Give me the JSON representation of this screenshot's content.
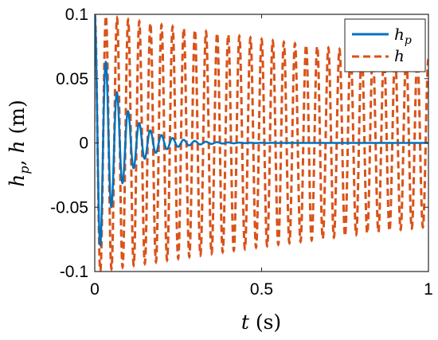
{
  "chart_data": {
    "type": "line",
    "xlabel": "t (s)",
    "ylabel": "h_p, h (m)",
    "xlim": [
      0,
      1
    ],
    "ylim": [
      -0.1,
      0.1
    ],
    "xticks": [
      "0",
      "0.5",
      "1"
    ],
    "xtick_values": [
      0,
      0.5,
      1
    ],
    "yticks": [
      "0.1",
      "0.05",
      "0",
      "-0.05",
      "-0.1"
    ],
    "ytick_values": [
      0.1,
      0.05,
      0,
      -0.05,
      -0.1
    ],
    "grid": false,
    "legend_position": "top-right",
    "series": [
      {
        "name": "h_p",
        "color": "#0072BD",
        "style": "solid",
        "amplitude": 0.1,
        "decay_rate": 14,
        "frequency_hz": 30
      },
      {
        "name": "h",
        "color": "#D95319",
        "style": "dashed",
        "amplitude": 0.1,
        "amplitude_at_end": 0.065,
        "frequency_hz": 30
      }
    ],
    "legend": [
      {
        "label": "h",
        "sub": "p"
      },
      {
        "label": "h",
        "sub": ""
      }
    ]
  }
}
